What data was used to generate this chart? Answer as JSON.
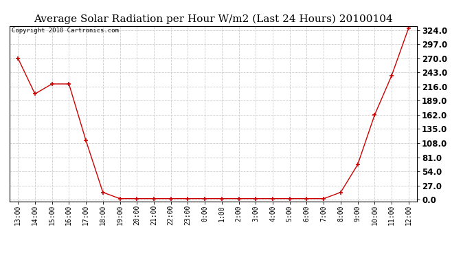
{
  "title": "Average Solar Radiation per Hour W/m2 (Last 24 Hours) 20100104",
  "copyright_text": "Copyright 2010 Cartronics.com",
  "x_labels": [
    "13:00",
    "14:00",
    "15:00",
    "16:00",
    "17:00",
    "18:00",
    "19:00",
    "20:00",
    "21:00",
    "22:00",
    "23:00",
    "0:00",
    "1:00",
    "2:00",
    "3:00",
    "4:00",
    "5:00",
    "6:00",
    "7:00",
    "8:00",
    "9:00",
    "10:00",
    "11:00",
    "12:00"
  ],
  "y_values": [
    270.0,
    202.0,
    221.0,
    221.0,
    113.0,
    14.0,
    2.0,
    2.0,
    2.0,
    2.0,
    2.0,
    2.0,
    2.0,
    2.0,
    2.0,
    2.0,
    2.0,
    2.0,
    2.0,
    14.0,
    67.0,
    162.0,
    237.0,
    328.0
  ],
  "y_ticks": [
    0.0,
    27.0,
    54.0,
    81.0,
    108.0,
    135.0,
    162.0,
    189.0,
    216.0,
    243.0,
    270.0,
    297.0,
    324.0
  ],
  "y_min": 0.0,
  "y_max": 324.0,
  "line_color": "#cc0000",
  "marker_color": "#cc0000",
  "grid_color": "#cccccc",
  "background_color": "#ffffff",
  "title_fontsize": 11,
  "copyright_fontsize": 6.5,
  "tick_fontsize": 8.5,
  "xtick_fontsize": 7
}
